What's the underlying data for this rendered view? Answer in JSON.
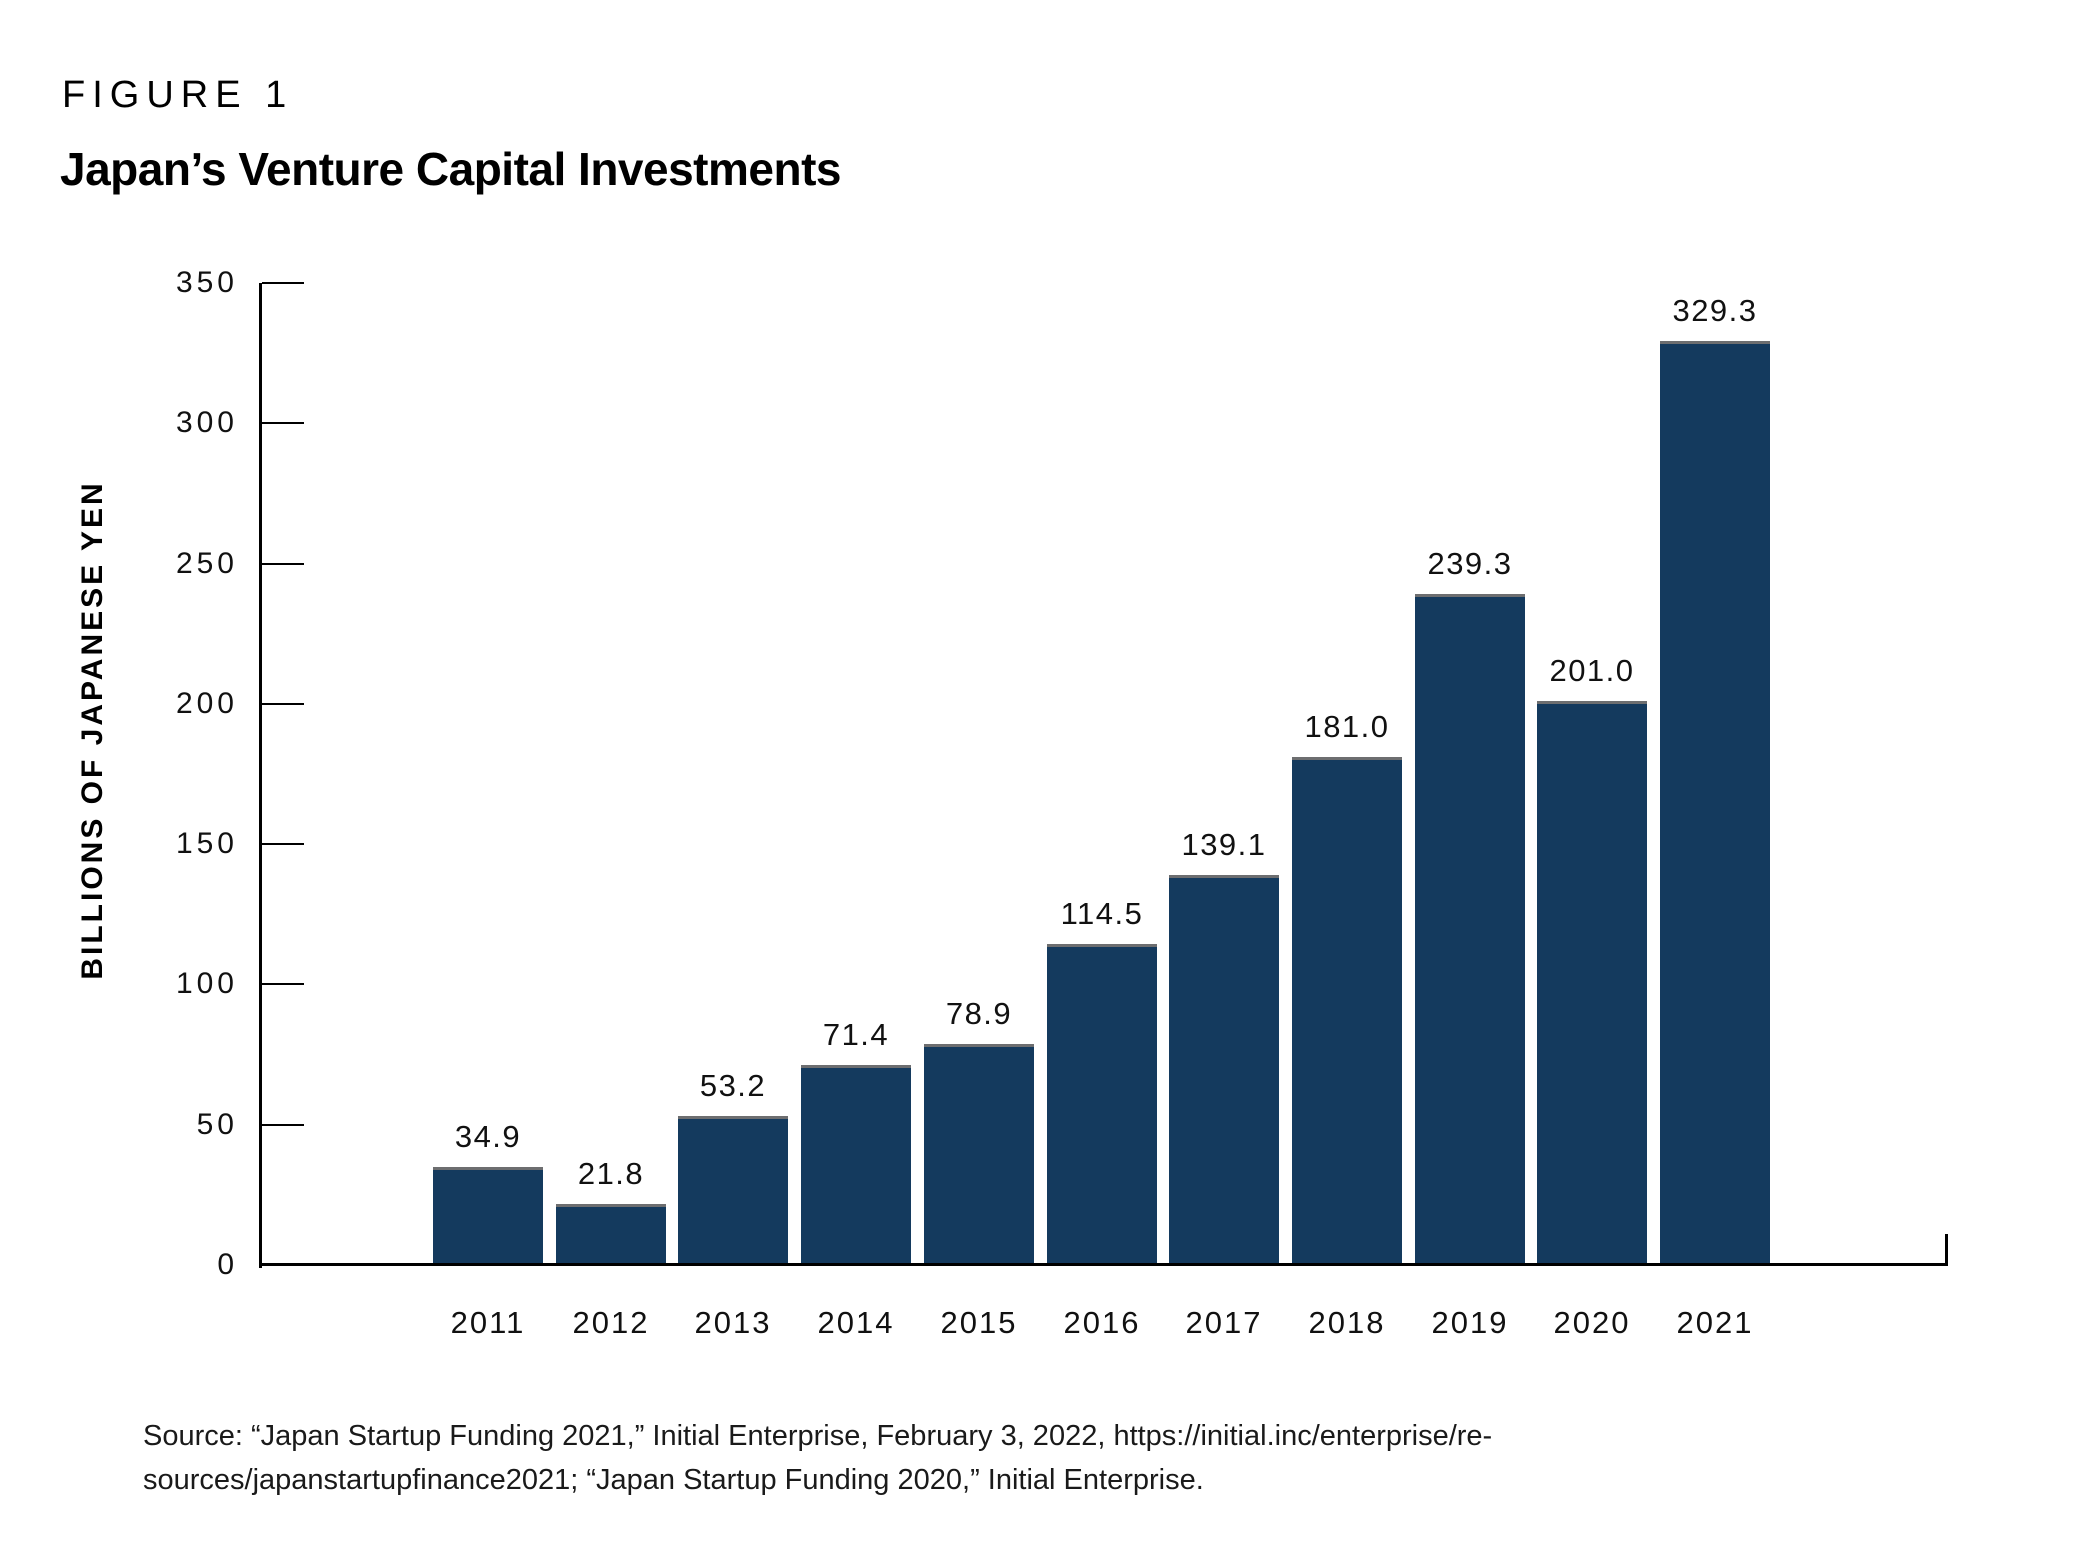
{
  "figure": {
    "label": "FIGURE 1",
    "title": "Japan’s Venture Capital Investments"
  },
  "chart_data": {
    "type": "bar",
    "title": "Japan’s Venture Capital Investments",
    "categories": [
      "2011",
      "2012",
      "2013",
      "2014",
      "2015",
      "2016",
      "2017",
      "2018",
      "2019",
      "2020",
      "2021"
    ],
    "values": [
      34.9,
      21.8,
      53.2,
      71.4,
      78.9,
      114.5,
      139.1,
      181.0,
      239.3,
      201.0,
      329.3
    ],
    "value_labels": [
      "34.9",
      "21.8",
      "53.2",
      "71.4",
      "78.9",
      "114.5",
      "139.1",
      "181.0",
      "239.3",
      "201.0",
      "329.3"
    ],
    "xlabel": "",
    "ylabel": "BILLIONS OF JAPANESE YEN",
    "ylim": [
      0,
      350
    ],
    "yticks": [
      0,
      50,
      100,
      150,
      200,
      250,
      300,
      350
    ],
    "grid": false,
    "legend": false,
    "bar_color": "#143A5E",
    "bar_top_stroke": "#6D6E70",
    "axis_color": "#000000",
    "text_color": "#111111"
  },
  "source": {
    "line1": "Source: “Japan Startup Funding 2021,” Initial Enterprise, February 3, 2022, https://initial.inc/enterprise/re-",
    "line2": "sources/japanstartupfinance2021; “Japan Startup Funding 2020,” Initial Enterprise."
  }
}
